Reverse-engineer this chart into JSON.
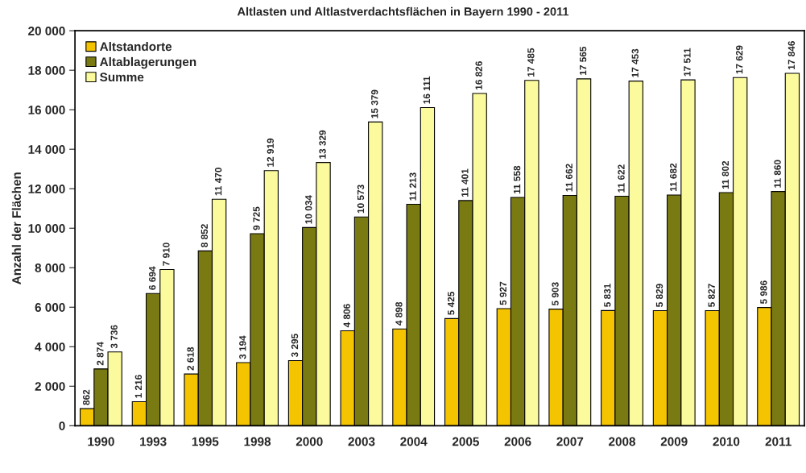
{
  "chart_data": {
    "type": "bar",
    "title": "Altlasten und Altlastverdachtsflächen in Bayern 1990 - 2011",
    "ylabel": "Anzahl der Flächen",
    "categories": [
      "1990",
      "1993",
      "1995",
      "1998",
      "2000",
      "2003",
      "2004",
      "2005",
      "2006",
      "2007",
      "2008",
      "2009",
      "2010",
      "2011"
    ],
    "series": [
      {
        "name": "Altstandorte",
        "color": "#f5c400",
        "values": [
          862,
          1216,
          2618,
          3194,
          3295,
          4806,
          4898,
          5425,
          5927,
          5903,
          5831,
          5829,
          5827,
          5986
        ],
        "value_labels": [
          "862",
          "1 216",
          "2 618",
          "3 194",
          "3 295",
          "4 806",
          "4 898",
          "5 425",
          "5 927",
          "5 903",
          "5 831",
          "5 829",
          "5 827",
          "5 986"
        ]
      },
      {
        "name": "Altablagerungen",
        "color": "#7a7a12",
        "values": [
          2874,
          6694,
          8852,
          9725,
          10034,
          10573,
          11213,
          11401,
          11558,
          11662,
          11622,
          11682,
          11802,
          11860
        ],
        "value_labels": [
          "2 874",
          "6 694",
          "8 852",
          "9 725",
          "10 034",
          "10 573",
          "11 213",
          "11 401",
          "11 558",
          "11 662",
          "11 622",
          "11 682",
          "11 802",
          "11 860"
        ]
      },
      {
        "name": "Summe",
        "color": "#fbfa9c",
        "values": [
          3736,
          7910,
          11470,
          12919,
          13329,
          15379,
          16111,
          16826,
          17485,
          17565,
          17453,
          17511,
          17629,
          17846
        ],
        "value_labels": [
          "3 736",
          "7 910",
          "11 470",
          "12 919",
          "13 329",
          "15 379",
          "16 111",
          "16 826",
          "17 485",
          "17 565",
          "17 453",
          "17 511",
          "17 629",
          "17 846"
        ]
      }
    ],
    "ylim": [
      0,
      20000
    ],
    "yticks": [
      0,
      {
        "value": 2000,
        "label": "2 000"
      },
      {
        "value": 4000,
        "label": "4 000"
      },
      {
        "value": 6000,
        "label": "6 000"
      },
      {
        "value": 8000,
        "label": "8 000"
      },
      {
        "value": 10000,
        "label": "10 000"
      },
      {
        "value": 12000,
        "label": "12 000"
      },
      {
        "value": 14000,
        "label": "14 000"
      },
      {
        "value": 16000,
        "label": "16 000"
      },
      {
        "value": 18000,
        "label": "18 000"
      },
      {
        "value": 20000,
        "label": "20 000"
      }
    ],
    "legend": "top left",
    "grid": false
  }
}
